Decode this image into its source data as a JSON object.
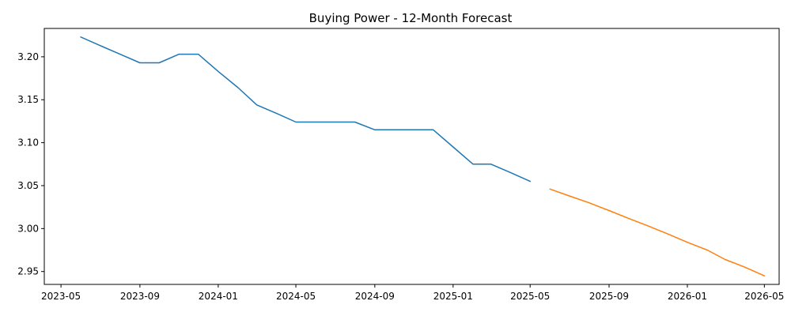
{
  "chart_data": {
    "type": "line",
    "title": "Buying Power - 12-Month Forecast",
    "xlabel": "",
    "ylabel": "",
    "x_ticks": [
      "2023-05",
      "2023-09",
      "2024-01",
      "2024-05",
      "2024-09",
      "2025-01",
      "2025-05",
      "2025-09",
      "2026-01",
      "2026-05"
    ],
    "y_ticks": [
      "2.95",
      "3.00",
      "3.05",
      "3.10",
      "3.15",
      "3.20"
    ],
    "xlim": [
      "2023-04-05",
      "2026-05-24"
    ],
    "ylim": [
      2.935,
      3.233
    ],
    "grid": false,
    "series": [
      {
        "color": "#1f77b4",
        "points": [
          [
            "2023-06-01",
            3.223
          ],
          [
            "2023-07-01",
            3.213
          ],
          [
            "2023-08-01",
            3.203
          ],
          [
            "2023-09-01",
            3.193
          ],
          [
            "2023-10-01",
            3.193
          ],
          [
            "2023-11-01",
            3.203
          ],
          [
            "2023-12-01",
            3.203
          ],
          [
            "2024-01-01",
            3.183
          ],
          [
            "2024-02-01",
            3.164
          ],
          [
            "2024-03-01",
            3.144
          ],
          [
            "2024-04-01",
            3.134
          ],
          [
            "2024-05-01",
            3.124
          ],
          [
            "2024-06-01",
            3.124
          ],
          [
            "2024-07-01",
            3.124
          ],
          [
            "2024-08-01",
            3.124
          ],
          [
            "2024-09-01",
            3.115
          ],
          [
            "2024-10-01",
            3.115
          ],
          [
            "2024-11-01",
            3.115
          ],
          [
            "2024-12-01",
            3.115
          ],
          [
            "2025-01-01",
            3.095
          ],
          [
            "2025-02-01",
            3.075
          ],
          [
            "2025-03-01",
            3.075
          ],
          [
            "2025-04-01",
            3.065
          ],
          [
            "2025-05-01",
            3.055
          ]
        ]
      },
      {
        "color": "#ff7f0e",
        "points": [
          [
            "2025-06-01",
            3.046
          ],
          [
            "2025-07-01",
            3.038
          ],
          [
            "2025-08-01",
            3.03
          ],
          [
            "2025-09-01",
            3.021
          ],
          [
            "2025-10-01",
            3.012
          ],
          [
            "2025-11-01",
            3.003
          ],
          [
            "2025-12-01",
            2.994
          ],
          [
            "2026-01-01",
            2.984
          ],
          [
            "2026-02-01",
            2.975
          ],
          [
            "2026-03-01",
            2.964
          ],
          [
            "2026-04-01",
            2.955
          ],
          [
            "2026-05-01",
            2.945
          ]
        ]
      }
    ]
  }
}
